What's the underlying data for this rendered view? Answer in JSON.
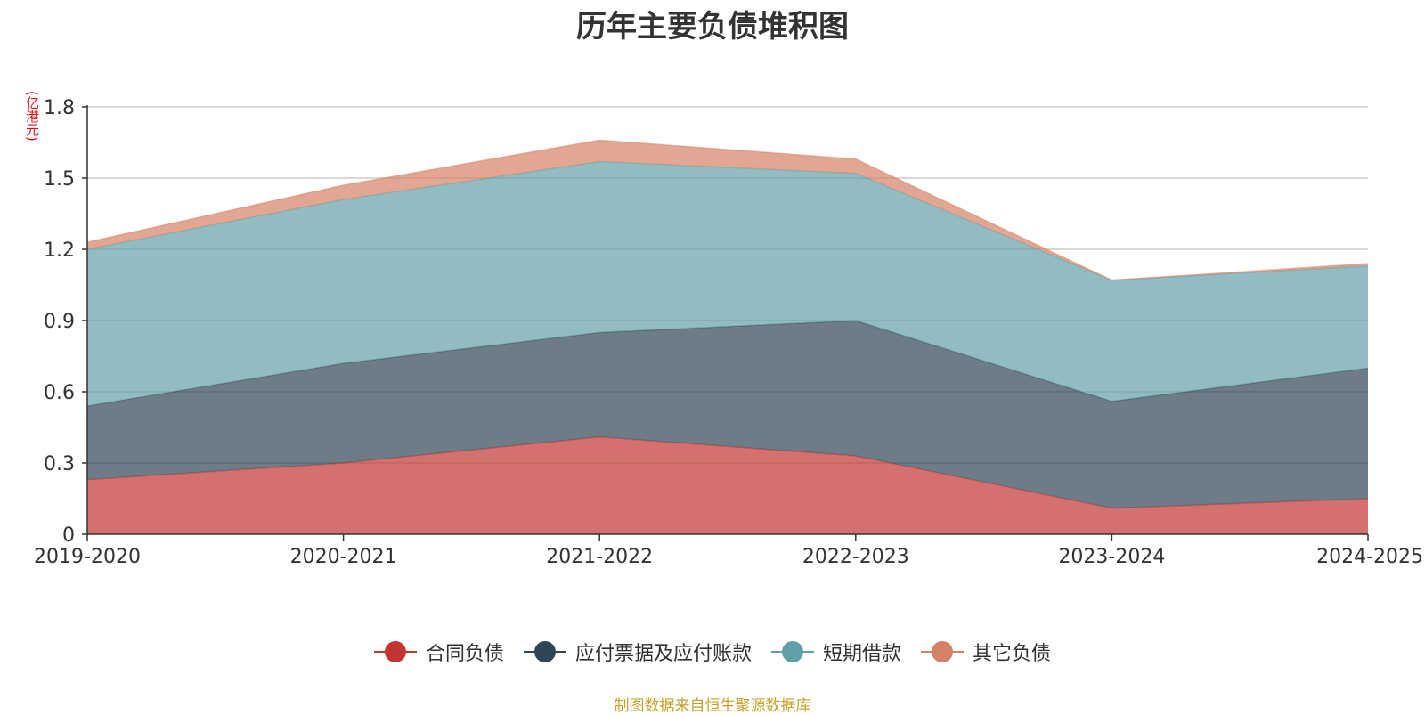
{
  "title": "历年主要负债堆积图",
  "unit_label": "(亿港元)",
  "source_note": "制图数据来自恒生聚源数据库",
  "chart_data": {
    "type": "area",
    "stacked": true,
    "categories": [
      "2019-2020",
      "2020-2021",
      "2021-2022",
      "2022-2023",
      "2023-2024",
      "2024-2025"
    ],
    "ylim": [
      0,
      1.8
    ],
    "yticks": [
      "0",
      "0.3",
      "0.6",
      "0.9",
      "1.2",
      "1.5",
      "1.8"
    ],
    "grid": true,
    "legend_position": "bottom",
    "series": [
      {
        "name": "合同负债",
        "color": "#c23531",
        "values": [
          0.23,
          0.3,
          0.41,
          0.33,
          0.11,
          0.15
        ]
      },
      {
        "name": "应付票据及应付账款",
        "color": "#2f4554",
        "values": [
          0.31,
          0.42,
          0.44,
          0.57,
          0.45,
          0.55
        ]
      },
      {
        "name": "短期借款",
        "color": "#61a0a8",
        "values": [
          0.66,
          0.69,
          0.72,
          0.62,
          0.51,
          0.43
        ]
      },
      {
        "name": "其它负债",
        "color": "#d48265",
        "values": [
          0.03,
          0.06,
          0.09,
          0.06,
          0.0,
          0.01
        ]
      }
    ]
  }
}
